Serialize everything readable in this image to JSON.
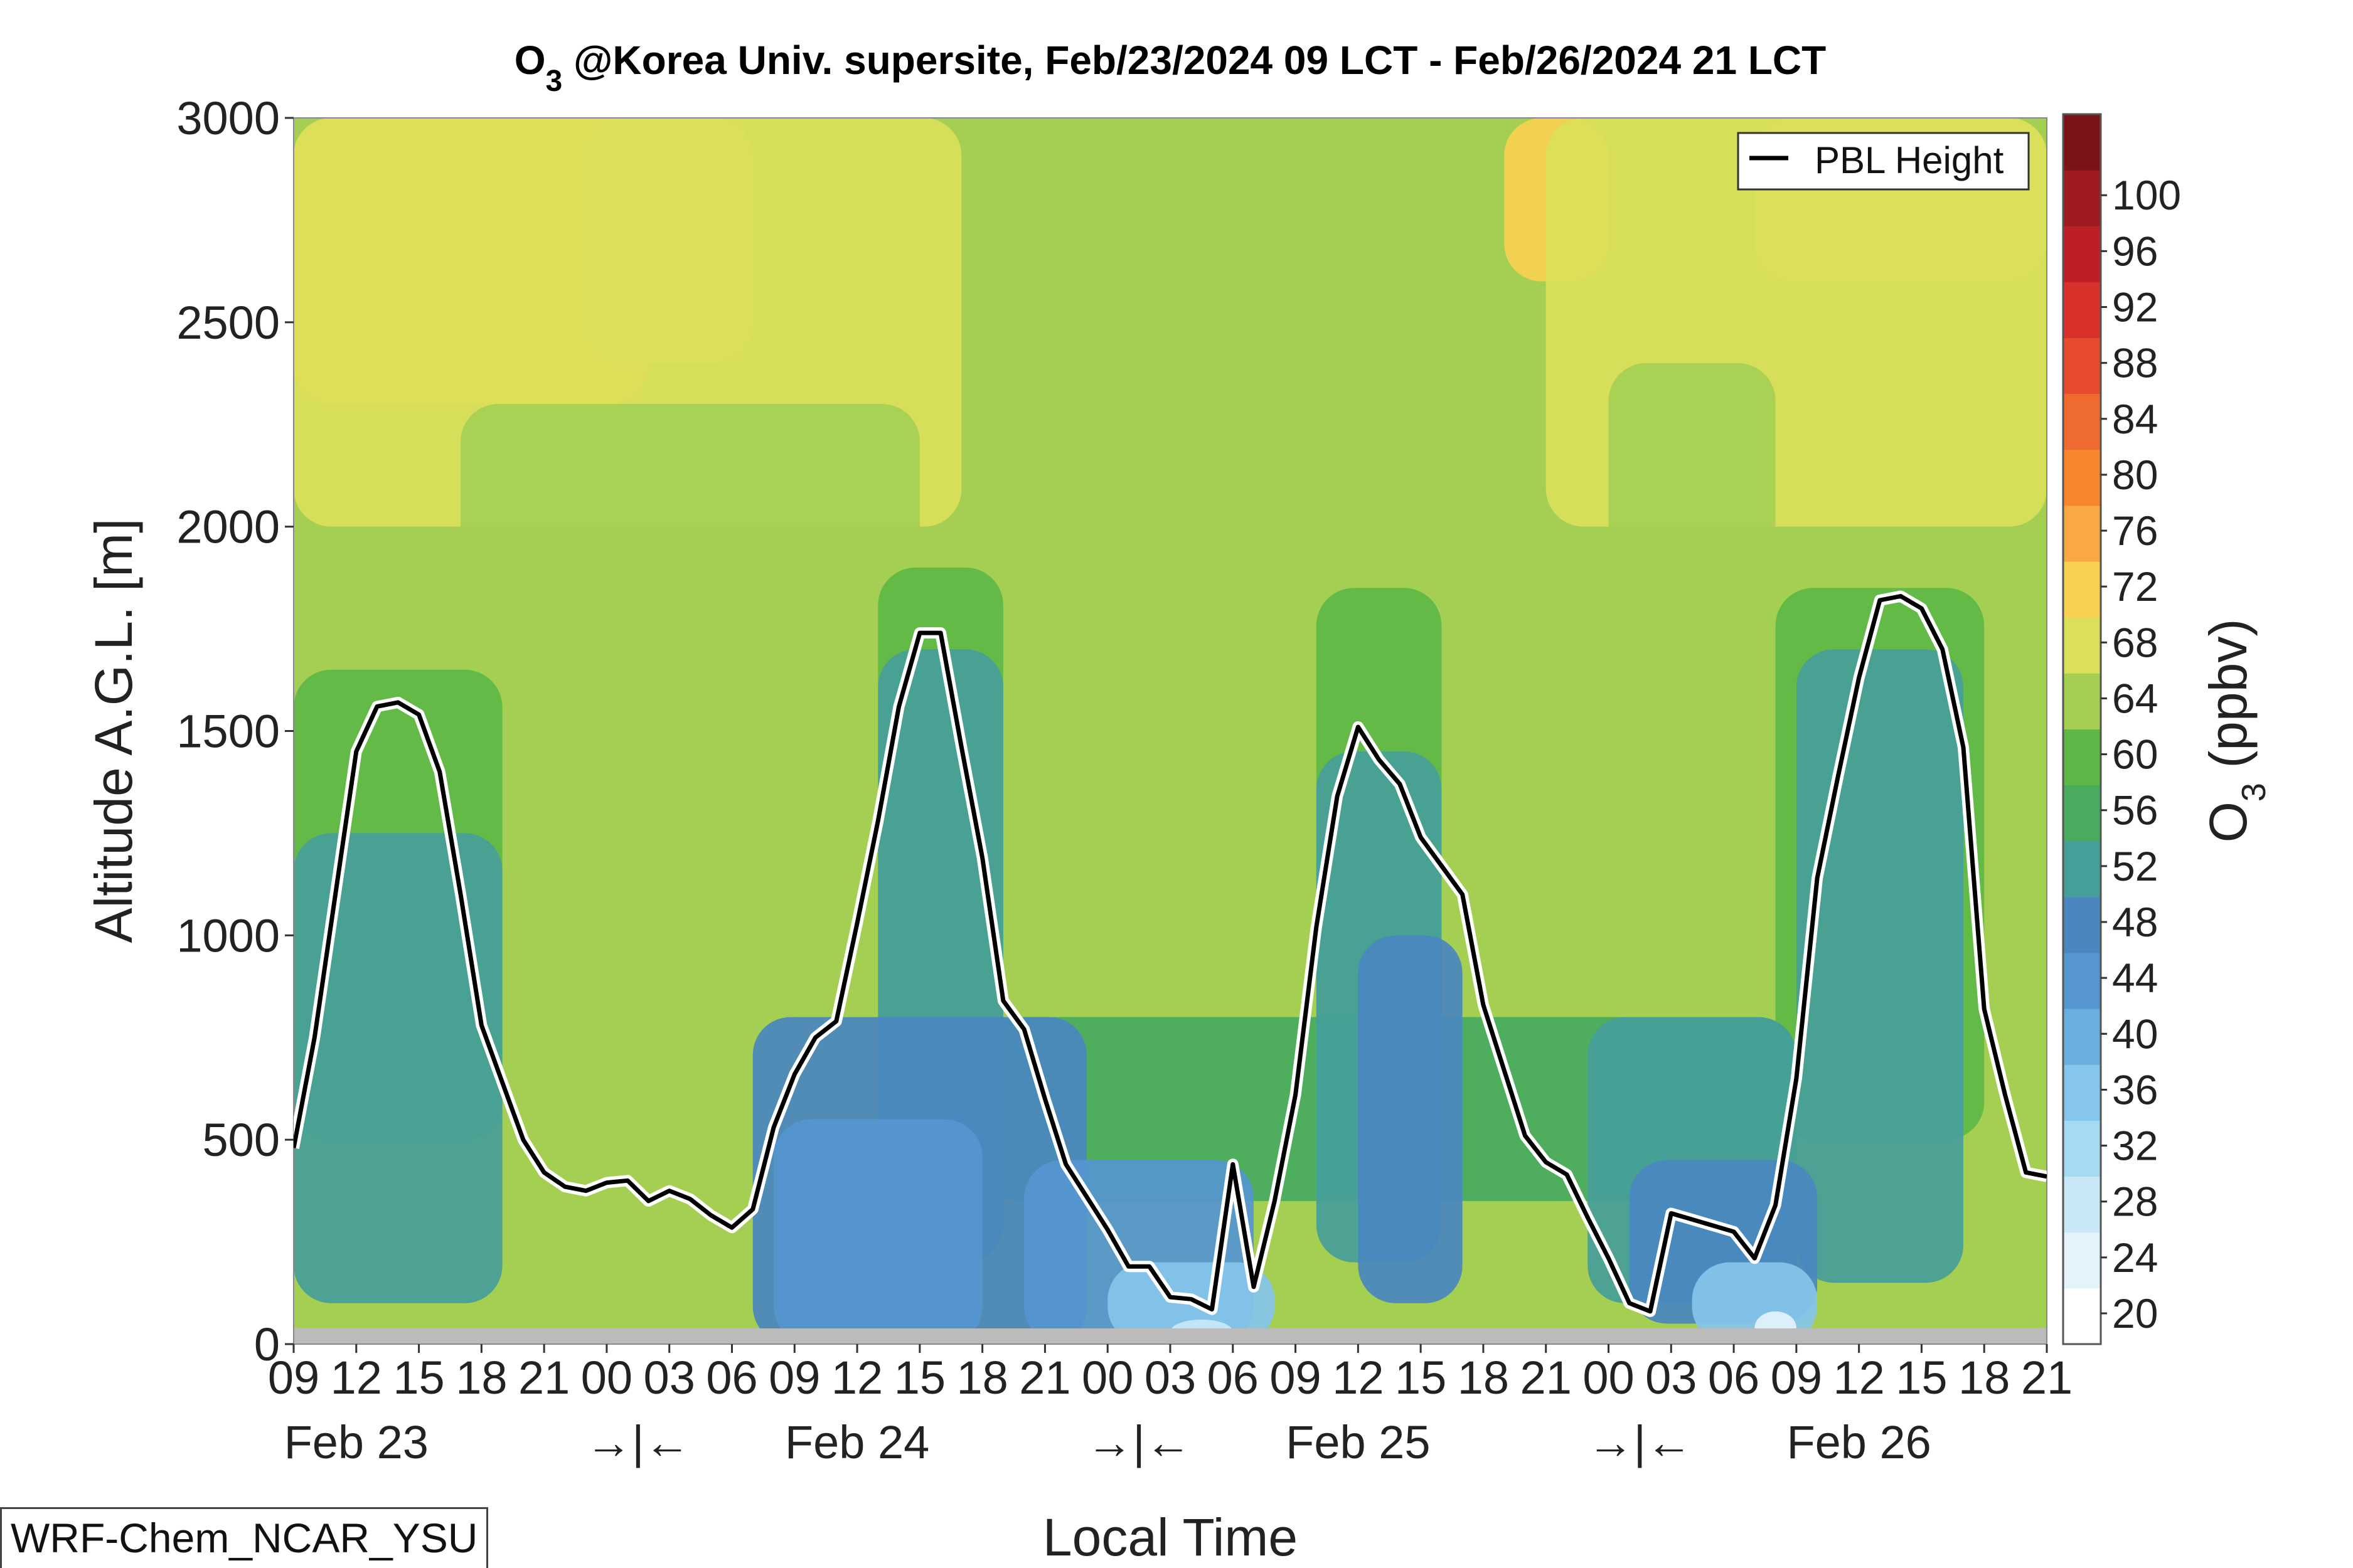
{
  "chart_data": {
    "type": "heatmap",
    "title": "O",
    "title_sub": "3",
    "title_rest": " @Korea Univ. supersite, Feb/23/2024 09 LCT - Feb/26/2024 21 LCT",
    "xlabel": "Local Time",
    "ylabel": "Altitude A.G.L. [m]",
    "colorbar_label": "O",
    "colorbar_label_sub": "3",
    "colorbar_label_rest": " (ppbv)",
    "ylim": [
      0,
      3000
    ],
    "yticks": [
      "0",
      "500",
      "1000",
      "1500",
      "2000",
      "2500",
      "3000"
    ],
    "xlim_hours": [
      0,
      84
    ],
    "xticks": [
      "09",
      "12",
      "15",
      "18",
      "21",
      "00",
      "03",
      "06",
      "09",
      "12",
      "15",
      "18",
      "21",
      "00",
      "03",
      "06",
      "09",
      "12",
      "15",
      "18",
      "21",
      "00",
      "03",
      "06",
      "09",
      "12",
      "15",
      "18",
      "21"
    ],
    "date_labels": [
      "Feb 23",
      "→|←",
      "Feb 24",
      "→|←",
      "Feb 25",
      "→|←",
      "Feb 26"
    ],
    "colorbar_ticks": [
      "20",
      "24",
      "28",
      "32",
      "36",
      "40",
      "44",
      "48",
      "52",
      "56",
      "60",
      "64",
      "68",
      "72",
      "76",
      "80",
      "84",
      "88",
      "92",
      "96",
      "100"
    ],
    "colorbar_colors": [
      "#ffffff",
      "#e4f3fb",
      "#c8e8f7",
      "#a6d9f2",
      "#86c6ec",
      "#6aaedf",
      "#5596d0",
      "#4a87c0",
      "#459e9a",
      "#48ab5e",
      "#5eb847",
      "#a5cf52",
      "#dbe05a",
      "#f9d150",
      "#f8a844",
      "#f6872f",
      "#ee6a2e",
      "#e54b2c",
      "#d8312b",
      "#bd1f27",
      "#9c1a20",
      "#7a1318"
    ],
    "pbl_height_x_hours": [
      0,
      1,
      2,
      3,
      4,
      5,
      6,
      7,
      8,
      9,
      10,
      11,
      12,
      13,
      14,
      15,
      16,
      17,
      18,
      19,
      20,
      21,
      22,
      23,
      24,
      25,
      26,
      27,
      28,
      29,
      30,
      31,
      32,
      33,
      34,
      35,
      36,
      37,
      38,
      39,
      40,
      41,
      42,
      43,
      44,
      45,
      46,
      47,
      48,
      49,
      50,
      51,
      52,
      53,
      54,
      55,
      56,
      57,
      58,
      59,
      60,
      61,
      62,
      63,
      64,
      65,
      66,
      67,
      68,
      69,
      70,
      71,
      72,
      73,
      74,
      75,
      76,
      77,
      78,
      79,
      80,
      81,
      82,
      83,
      84
    ],
    "pbl_height_m": [
      480,
      750,
      1100,
      1450,
      1560,
      1570,
      1540,
      1400,
      1100,
      780,
      640,
      500,
      420,
      385,
      375,
      395,
      400,
      350,
      375,
      355,
      315,
      285,
      330,
      530,
      660,
      750,
      790,
      1030,
      1280,
      1560,
      1740,
      1740,
      1460,
      1190,
      840,
      770,
      600,
      440,
      360,
      280,
      190,
      190,
      115,
      110,
      85,
      440,
      140,
      350,
      610,
      1020,
      1340,
      1510,
      1430,
      1370,
      1240,
      1170,
      1100,
      830,
      670,
      510,
      445,
      415,
      310,
      210,
      100,
      80,
      320,
      305,
      290,
      275,
      210,
      340,
      650,
      1140,
      1390,
      1630,
      1820,
      1830,
      1800,
      1700,
      1460,
      820,
      610,
      420,
      410
    ],
    "legend": [
      "PBL Height"
    ],
    "legend_position": "top-right",
    "model_label": "WRF-Chem_NCAR_YSU"
  }
}
